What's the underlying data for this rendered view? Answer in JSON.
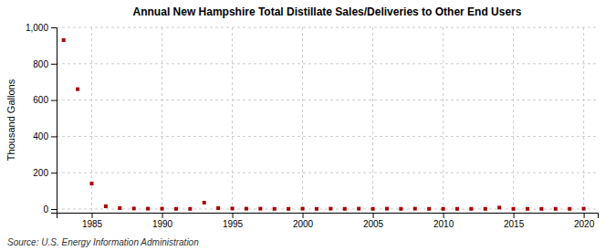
{
  "chart_data": {
    "type": "scatter",
    "title": "Annual New Hampshire Total Distillate Sales/Deliveries to Other End Users",
    "ylabel": "Thousand Gallons",
    "annotations": [
      "Source: U.S. Energy Information Administration"
    ],
    "x": [
      1983,
      1984,
      1985,
      1986,
      1987,
      1988,
      1989,
      1990,
      1991,
      1992,
      1993,
      1994,
      1995,
      1996,
      1997,
      1998,
      1999,
      2000,
      2001,
      2002,
      2003,
      2004,
      2005,
      2006,
      2007,
      2008,
      2009,
      2010,
      2011,
      2012,
      2013,
      2014,
      2015,
      2016,
      2017,
      2018,
      2019,
      2020
    ],
    "values": [
      930,
      660,
      140,
      15,
      5,
      3,
      2,
      2,
      1,
      1,
      35,
      5,
      3,
      2,
      2,
      1,
      1,
      2,
      1,
      2,
      1,
      2,
      1,
      2,
      1,
      2,
      1,
      1,
      1,
      1,
      1,
      8,
      1,
      1,
      1,
      1,
      1,
      2
    ],
    "color": "#aa0000",
    "marker": "square",
    "xlim": [
      1982.5,
      2021
    ],
    "ylim": [
      -20,
      1000
    ],
    "xticks": [
      1985,
      1990,
      1995,
      2000,
      2005,
      2010,
      2015,
      2020
    ],
    "yticks": [
      0,
      200,
      400,
      600,
      800,
      {
        "value": 1000,
        "label": "1,000"
      }
    ],
    "grid": true
  }
}
